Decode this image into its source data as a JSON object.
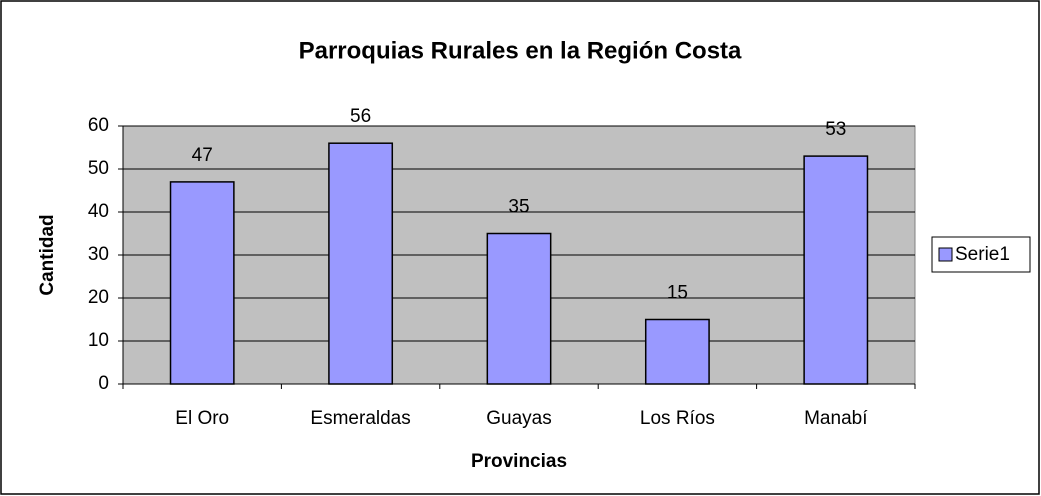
{
  "chart_data": {
    "type": "bar",
    "title": "Parroquias Rurales en la Región Costa",
    "x_label": "Provincias",
    "y_label": "Cantidad",
    "categories": [
      "El Oro",
      "Esmeraldas",
      "Guayas",
      "Los Ríos",
      "Manabí"
    ],
    "series": [
      {
        "name": "Serie1",
        "color": "#9999ff",
        "values": [
          47,
          56,
          35,
          15,
          53
        ]
      }
    ],
    "ylim": [
      0,
      60
    ],
    "yticks": [
      0,
      10,
      20,
      30,
      40,
      50,
      60
    ],
    "grid": true,
    "legend": "right"
  }
}
